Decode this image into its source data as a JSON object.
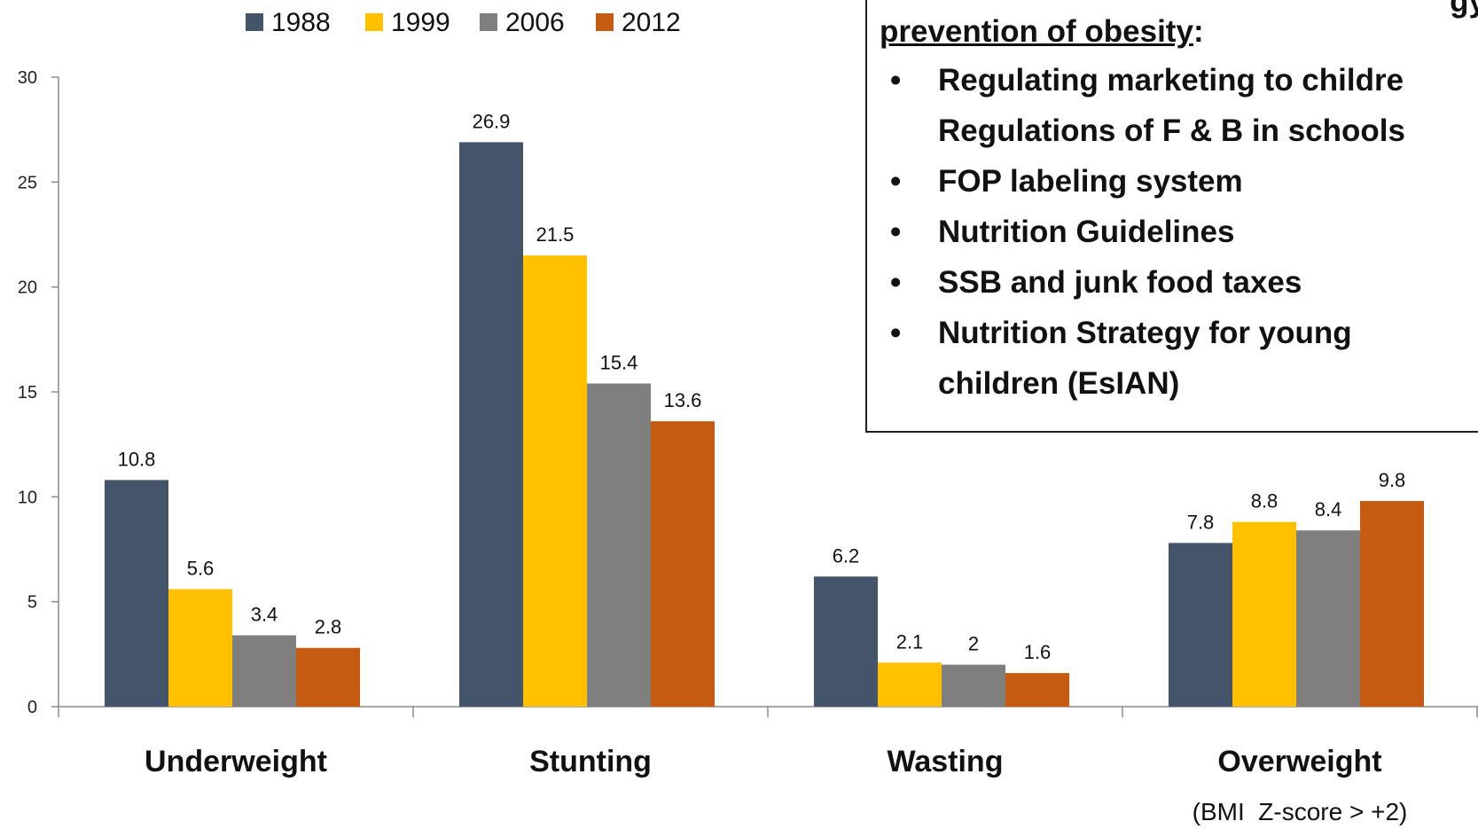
{
  "chart_data": {
    "type": "bar",
    "categories": [
      "Underweight",
      "Stunting",
      "Wasting",
      "Overweight"
    ],
    "category_sublabels": [
      "",
      "",
      "",
      "(BMI  Z-score > +2)"
    ],
    "series": [
      {
        "name": "1988",
        "color": "#44546a",
        "values": [
          10.8,
          26.9,
          6.2,
          7.8
        ]
      },
      {
        "name": "1999",
        "color": "#ffc000",
        "values": [
          5.6,
          21.5,
          2.1,
          8.8
        ]
      },
      {
        "name": "2006",
        "color": "#7f7f7f",
        "values": [
          3.4,
          15.4,
          2,
          8.4
        ]
      },
      {
        "name": "2012",
        "color": "#c55a11",
        "values": [
          2.8,
          13.6,
          1.6,
          9.8
        ]
      }
    ],
    "ylim": [
      0,
      30
    ],
    "yticks": [
      0,
      5,
      10,
      15,
      20,
      25,
      30
    ],
    "grid": false,
    "legend": "top",
    "title": "",
    "xlabel": "",
    "ylabel": ""
  },
  "policy_box": {
    "heading_partial": "gy",
    "heading": "prevention of obesity",
    "heading_colon": ":",
    "items": [
      {
        "lines": [
          "Regulating marketing to childre",
          "Regulations of F & B in schools"
        ]
      },
      {
        "lines": [
          "FOP labeling system"
        ]
      },
      {
        "lines": [
          "Nutrition Guidelines"
        ]
      },
      {
        "lines": [
          "SSB and junk food taxes"
        ]
      },
      {
        "lines": [
          "Nutrition Strategy for young",
          "children (EsIAN)"
        ]
      }
    ]
  }
}
